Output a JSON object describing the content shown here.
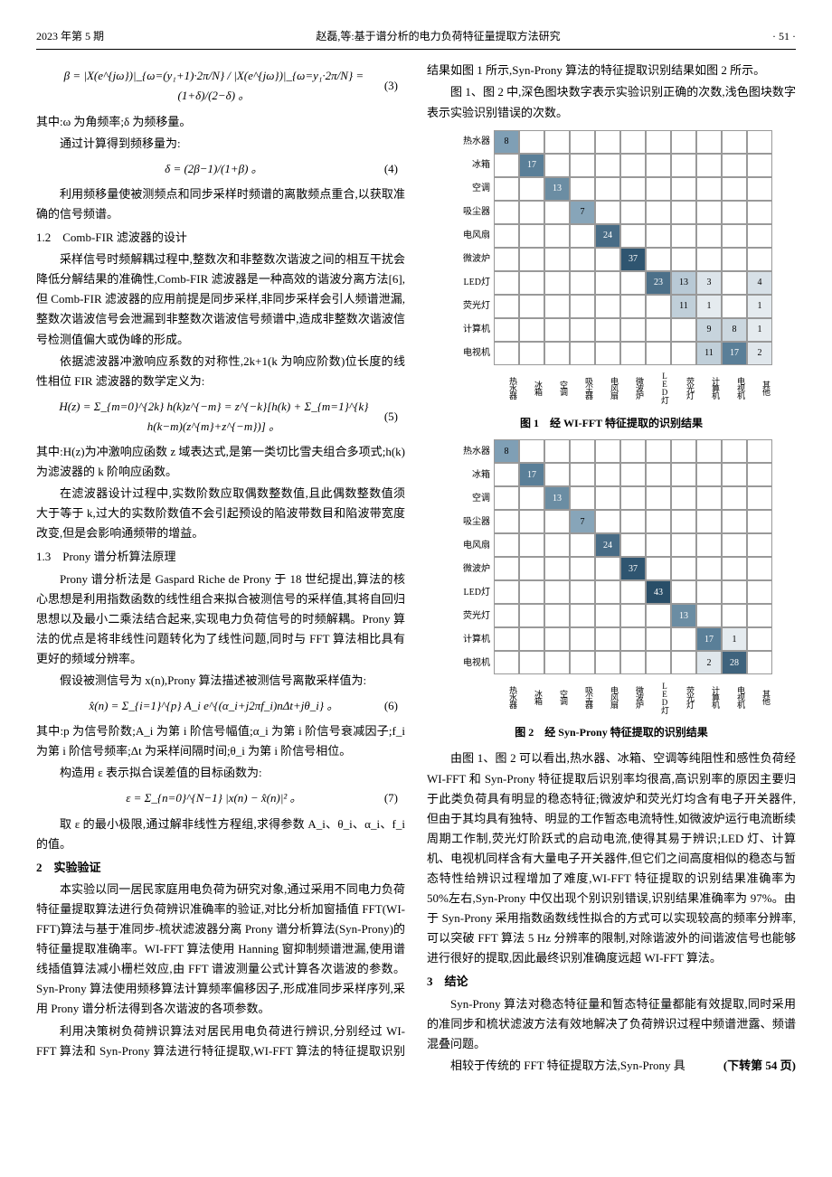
{
  "header": {
    "left": "2023 年第 5 期",
    "center": "赵磊,等:基于谱分析的电力负荷特征量提取方法研究",
    "right": "· 51 ·"
  },
  "eq3": {
    "body": "β = |X(e^{jω})|_{ω=(y₁+1)·2π/N} / |X(e^{jω})|_{ω=y₁·2π/N} = (1+δ)/(2−δ) 。",
    "num": "(3)"
  },
  "eq3_note": "其中:ω 为角频率;δ 为频移量。",
  "eq3_after": "通过计算得到频移量为:",
  "eq4": {
    "body": "δ = (2β−1)/(1+β) 。",
    "num": "(4)"
  },
  "p_freq": "利用频移量使被测频点和同步采样时频谱的离散频点重合,以获取准确的信号频谱。",
  "sec12_title": "1.2　Comb-FIR 滤波器的设计",
  "p12a": "采样信号时频解耦过程中,整数次和非整数次谐波之间的相互干扰会降低分解结果的准确性,Comb-FIR 滤波器是一种高效的谐波分离方法[6],但 Comb-FIR 滤波器的应用前提是同步采样,非同步采样会引人频谱泄漏,整数次谐波信号会泄漏到非整数次谐波信号频谱中,造成非整数次谐波信号检测值偏大或伪峰的形成。",
  "p12b": "依据滤波器冲激响应系数的对称性,2k+1(k 为响应阶数)位长度的线性相位 FIR 滤波器的数学定义为:",
  "eq5": {
    "body": "H(z) = Σ_{m=0}^{2k} h(k)z^{−m} = z^{−k}[h(k) + Σ_{m=1}^{k} h(k−m)(z^{m}+z^{−m})] 。",
    "num": "(5)"
  },
  "eq5_note": "其中:H(z)为冲激响应函数 z 域表达式,是第一类切比雪夫组合多项式;h(k)为滤波器的 k 阶响应函数。",
  "p12c": "在滤波器设计过程中,实数阶数应取偶数整数值,且此偶数整数值须大于等于 k,过大的实数阶数值不会引起预设的陷波带数目和陷波带宽度改变,但是会影响通频带的增益。",
  "sec13_title": "1.3　Prony 谱分析算法原理",
  "p13a": "Prony 谱分析法是 Gaspard Riche de Prony 于 18 世纪提出,算法的核心思想是利用指数函数的线性组合来拟合被测信号的采样值,其将自回归思想以及最小二乘法结合起来,实现电力负荷信号的时频解耦。Prony 算法的优点是将非线性问题转化为了线性问题,同时与 FFT 算法相比具有更好的频域分辨率。",
  "p13b": "假设被测信号为 x(n),Prony 算法描述被测信号离散采样值为:",
  "eq6": {
    "body": "x̂(n) = Σ_{i=1}^{p} A_i e^{(α_i+j2πf_i)nΔt+jθ_i} 。",
    "num": "(6)"
  },
  "eq6_note": "其中:p 为信号阶数;A_i 为第 i 阶信号幅值;α_i 为第 i 阶信号衰减因子;f_i 为第 i 阶信号频率;Δt 为采样间隔时间;θ_i 为第 i 阶信号相位。",
  "p13c": "构造用 ε 表示拟合误差值的目标函数为:",
  "eq7": {
    "body": "ε = Σ_{n=0}^{N−1} |x(n) − x̂(n)|² 。",
    "num": "(7)"
  },
  "p13d": "取 ε 的最小极限,通过解非线性方程组,求得参数 A_i、θ_i、α_i、f_i 的值。",
  "sec2_title": "2　实验验证",
  "p2a": "本实验以同一居民家庭用电负荷为研究对象,通过采用不同电力负荷特征量提取算法进行负荷辨识准确率的验证,对比分析加窗插值 FFT(WI-FFT)算法与基于准同步-梳状滤波器分离 Prony 谱分析算法(Syn-Prony)的特征量提取准确率。WI-FFT 算法使用 Hanning 窗抑制频谱泄漏,使用谱线插值算法减小栅栏效应,由 FFT 谱波测量公式计算各次谐波的参数。Syn-Prony 算法使用频移算法计算频率偏移因子,形成准同步采样序列,采用 Prony 谱分析法得到各次谐波的各项参数。",
  "p2b": "利用决策树负荷辨识算法对居民用电负荷进行辨识,分别经过 WI-FFT 算法和 Syn-Prony 算法进行特征提取,WI-FFT 算法的特征提取识别结果如图 1 所示,Syn-Prony 算法的特征提取识别结果如图 2 所示。",
  "p_fig_note": "图 1、图 2 中,深色图块数字表示实验识别正确的次数,浅色图块数字表示实验识别错误的次数。",
  "categories": [
    "热水器",
    "冰箱",
    "空调",
    "吸尘器",
    "电风扇",
    "微波炉",
    "LED灯",
    "荧光灯",
    "计算机",
    "电视机",
    "其他"
  ],
  "row_categories": [
    "热水器",
    "冰箱",
    "空调",
    "吸尘器",
    "电风扇",
    "微波炉",
    "LED灯",
    "荧光灯",
    "计算机",
    "电视机"
  ],
  "fig1": {
    "caption": "图 1　经 WI-FFT 特征提取的识别结果",
    "cells": [
      {
        "r": 0,
        "c": 0,
        "v": 8,
        "bg": "#7f9fb5"
      },
      {
        "r": 1,
        "c": 1,
        "v": 17,
        "bg": "#5a7f98"
      },
      {
        "r": 2,
        "c": 2,
        "v": 13,
        "bg": "#6b8da3"
      },
      {
        "r": 3,
        "c": 3,
        "v": 7,
        "bg": "#87a5b9"
      },
      {
        "r": 4,
        "c": 4,
        "v": 24,
        "bg": "#486c86"
      },
      {
        "r": 5,
        "c": 5,
        "v": 37,
        "bg": "#2f5570"
      },
      {
        "r": 6,
        "c": 6,
        "v": 23,
        "bg": "#4c7089"
      },
      {
        "r": 6,
        "c": 7,
        "v": 13,
        "bg": "#b8c9d5"
      },
      {
        "r": 6,
        "c": 8,
        "v": 3,
        "bg": "#dce4ea"
      },
      {
        "r": 6,
        "c": 10,
        "v": 4,
        "bg": "#d7e0e7"
      },
      {
        "r": 7,
        "c": 7,
        "v": 11,
        "bg": "#c0cfd9"
      },
      {
        "r": 7,
        "c": 8,
        "v": 1,
        "bg": "#e5ebef"
      },
      {
        "r": 7,
        "c": 10,
        "v": 1,
        "bg": "#e5ebef"
      },
      {
        "r": 8,
        "c": 8,
        "v": 9,
        "bg": "#c7d4dd"
      },
      {
        "r": 8,
        "c": 9,
        "v": 8,
        "bg": "#cbd7df"
      },
      {
        "r": 8,
        "c": 10,
        "v": 1,
        "bg": "#e5ebef"
      },
      {
        "r": 9,
        "c": 8,
        "v": 11,
        "bg": "#c0cfd9"
      },
      {
        "r": 9,
        "c": 9,
        "v": 17,
        "bg": "#5a7f98"
      },
      {
        "r": 9,
        "c": 10,
        "v": 2,
        "bg": "#e0e7ec"
      }
    ],
    "empty_bg": "#ffffff",
    "grid_color": "#999999"
  },
  "fig2": {
    "caption": "图 2　经 Syn-Prony 特征提取的识别结果",
    "cells": [
      {
        "r": 0,
        "c": 0,
        "v": 8,
        "bg": "#7f9fb5"
      },
      {
        "r": 1,
        "c": 1,
        "v": 17,
        "bg": "#5a7f98"
      },
      {
        "r": 2,
        "c": 2,
        "v": 13,
        "bg": "#6b8da3"
      },
      {
        "r": 3,
        "c": 3,
        "v": 7,
        "bg": "#87a5b9"
      },
      {
        "r": 4,
        "c": 4,
        "v": 24,
        "bg": "#486c86"
      },
      {
        "r": 5,
        "c": 5,
        "v": 37,
        "bg": "#2f5570"
      },
      {
        "r": 6,
        "c": 6,
        "v": 43,
        "bg": "#294e68"
      },
      {
        "r": 7,
        "c": 7,
        "v": 13,
        "bg": "#6b8da3"
      },
      {
        "r": 8,
        "c": 8,
        "v": 17,
        "bg": "#5a7f98"
      },
      {
        "r": 8,
        "c": 9,
        "v": 1,
        "bg": "#e5ebef"
      },
      {
        "r": 9,
        "c": 8,
        "v": 2,
        "bg": "#e0e7ec"
      },
      {
        "r": 9,
        "c": 9,
        "v": 28,
        "bg": "#3f637d"
      }
    ],
    "empty_bg": "#ffffff",
    "grid_color": "#999999"
  },
  "p_after_fig": "由图 1、图 2 可以看出,热水器、冰箱、空调等纯阻性和感性负荷经 WI-FFT 和 Syn-Prony 特征提取后识别率均很高,高识别率的原因主要归于此类负荷具有明显的稳态特征;微波炉和荧光灯均含有电子开关器件,但由于其均具有独特、明显的工作暂态电流特性,如微波炉运行电流断续周期工作制,荧光灯阶跃式的启动电流,使得其易于辨识;LED 灯、计算机、电视机同样含有大量电子开关器件,但它们之间高度相似的稳态与暂态特性给辨识过程增加了难度,WI-FFT 特征提取的识别结果准确率为 50%左右,Syn-Prony 中仅出现个别识别错误,识别结果准确率为 97%。由于 Syn-Prony 采用指数函数线性拟合的方式可以实现较高的频率分辨率,可以突破 FFT 算法 5 Hz 分辨率的限制,对除谐波外的间谐波信号也能够进行很好的提取,因此最终识别准确度远超 WI-FFT 算法。",
  "sec3_title": "3　结论",
  "p3a": "Syn-Prony 算法对稳态特征量和暂态特征量都能有效提取,同时采用的准同步和梳状滤波方法有效地解决了负荷辨识过程中频谱泄露、频谱混叠问题。",
  "p3b_prefix": "相较于传统的 FFT 特征提取方法,Syn-Prony 具",
  "continuation": "(下转第 54 页)"
}
